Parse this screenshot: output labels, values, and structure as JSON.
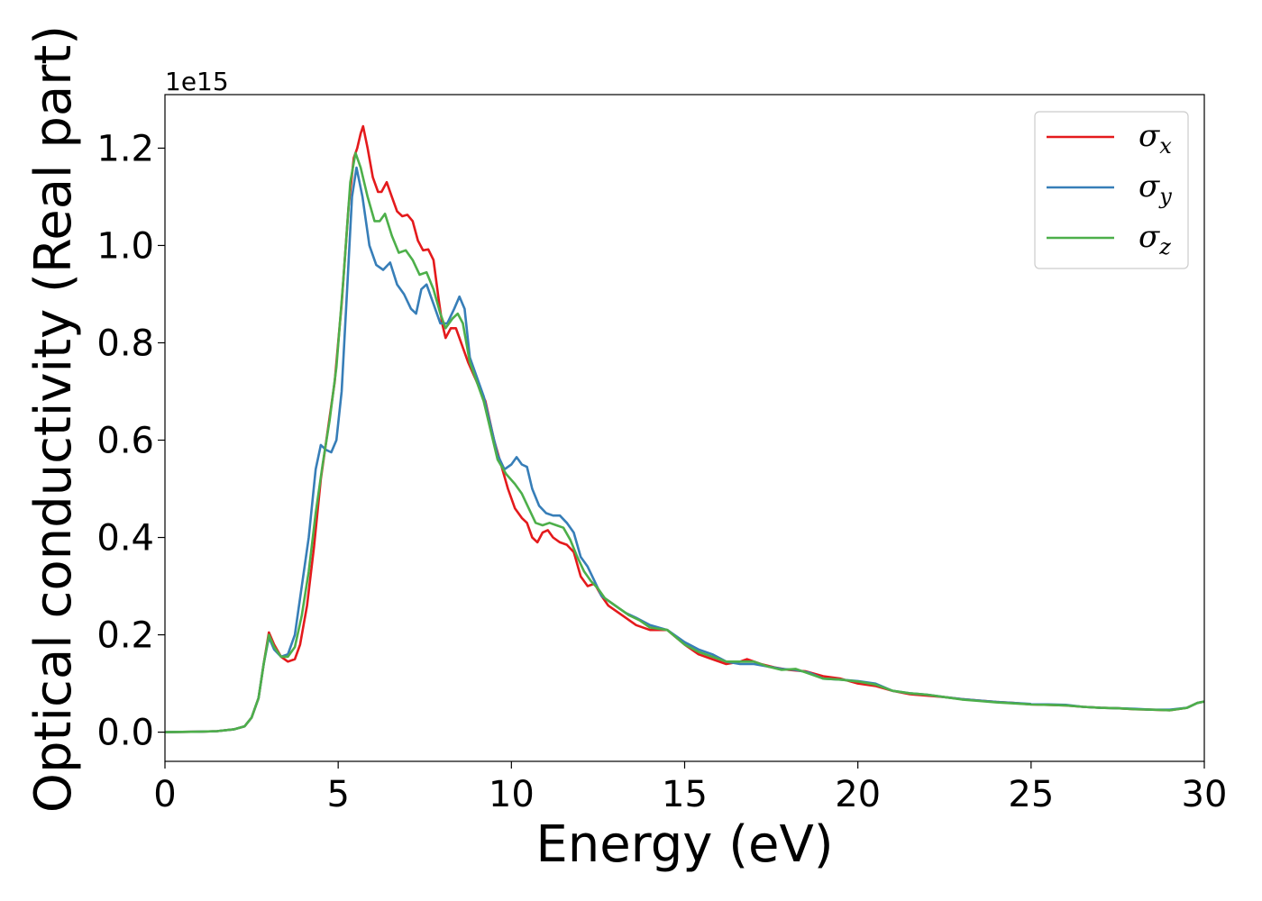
{
  "chart_data": {
    "type": "line",
    "title": "",
    "xlabel": "Energy (eV)",
    "ylabel": "Optical conductivity (Real part)",
    "y_offset_label": "1e15",
    "xlim": [
      0,
      30
    ],
    "ylim": [
      -0.06,
      1.31
    ],
    "x_ticks": [
      0,
      5,
      10,
      15,
      20,
      25,
      30
    ],
    "x_tick_labels": [
      "0",
      "5",
      "10",
      "15",
      "20",
      "25",
      "30"
    ],
    "y_ticks": [
      0.0,
      0.2,
      0.4,
      0.6,
      0.8,
      1.0,
      1.2
    ],
    "y_tick_labels": [
      "0.0",
      "0.2",
      "0.4",
      "0.6",
      "0.8",
      "1.0",
      "1.2"
    ],
    "grid": false,
    "legend_position": "top-right",
    "series": [
      {
        "name": "σx",
        "legend_symbol": "σ",
        "legend_subscript": "x",
        "color": "#e41a1c",
        "points": [
          [
            0,
            0
          ],
          [
            1,
            0.001
          ],
          [
            1.5,
            0.002
          ],
          [
            2,
            0.006
          ],
          [
            2.3,
            0.012
          ],
          [
            2.5,
            0.03
          ],
          [
            2.7,
            0.07
          ],
          [
            2.85,
            0.14
          ],
          [
            3.0,
            0.205
          ],
          [
            3.15,
            0.18
          ],
          [
            3.35,
            0.155
          ],
          [
            3.55,
            0.145
          ],
          [
            3.75,
            0.15
          ],
          [
            3.9,
            0.18
          ],
          [
            4.1,
            0.26
          ],
          [
            4.3,
            0.38
          ],
          [
            4.5,
            0.52
          ],
          [
            4.7,
            0.62
          ],
          [
            4.9,
            0.72
          ],
          [
            5.1,
            0.88
          ],
          [
            5.3,
            1.08
          ],
          [
            5.45,
            1.18
          ],
          [
            5.55,
            1.2
          ],
          [
            5.65,
            1.23
          ],
          [
            5.72,
            1.245
          ],
          [
            5.85,
            1.2
          ],
          [
            6.0,
            1.14
          ],
          [
            6.15,
            1.11
          ],
          [
            6.25,
            1.11
          ],
          [
            6.4,
            1.13
          ],
          [
            6.55,
            1.1
          ],
          [
            6.7,
            1.07
          ],
          [
            6.85,
            1.06
          ],
          [
            7.0,
            1.063
          ],
          [
            7.15,
            1.05
          ],
          [
            7.3,
            1.01
          ],
          [
            7.45,
            0.99
          ],
          [
            7.6,
            0.992
          ],
          [
            7.75,
            0.97
          ],
          [
            7.9,
            0.89
          ],
          [
            8.0,
            0.84
          ],
          [
            8.1,
            0.81
          ],
          [
            8.25,
            0.83
          ],
          [
            8.4,
            0.83
          ],
          [
            8.55,
            0.8
          ],
          [
            8.75,
            0.76
          ],
          [
            9.0,
            0.72
          ],
          [
            9.25,
            0.68
          ],
          [
            9.5,
            0.6
          ],
          [
            9.7,
            0.55
          ],
          [
            9.9,
            0.5
          ],
          [
            10.1,
            0.46
          ],
          [
            10.3,
            0.44
          ],
          [
            10.45,
            0.43
          ],
          [
            10.6,
            0.4
          ],
          [
            10.75,
            0.39
          ],
          [
            10.9,
            0.41
          ],
          [
            11.05,
            0.415
          ],
          [
            11.2,
            0.4
          ],
          [
            11.4,
            0.39
          ],
          [
            11.6,
            0.385
          ],
          [
            11.8,
            0.37
          ],
          [
            12.0,
            0.32
          ],
          [
            12.2,
            0.3
          ],
          [
            12.4,
            0.305
          ],
          [
            12.6,
            0.28
          ],
          [
            12.8,
            0.26
          ],
          [
            13.0,
            0.25
          ],
          [
            13.3,
            0.235
          ],
          [
            13.6,
            0.22
          ],
          [
            14.0,
            0.21
          ],
          [
            14.5,
            0.21
          ],
          [
            15.0,
            0.18
          ],
          [
            15.4,
            0.16
          ],
          [
            15.8,
            0.15
          ],
          [
            16.2,
            0.14
          ],
          [
            16.6,
            0.145
          ],
          [
            16.8,
            0.15
          ],
          [
            17.2,
            0.14
          ],
          [
            17.6,
            0.133
          ],
          [
            18.0,
            0.128
          ],
          [
            18.5,
            0.125
          ],
          [
            19.0,
            0.115
          ],
          [
            19.5,
            0.11
          ],
          [
            20.0,
            0.1
          ],
          [
            20.5,
            0.095
          ],
          [
            21.0,
            0.085
          ],
          [
            21.5,
            0.078
          ],
          [
            22.0,
            0.075
          ],
          [
            22.5,
            0.072
          ],
          [
            23.0,
            0.068
          ],
          [
            23.5,
            0.065
          ],
          [
            24.0,
            0.062
          ],
          [
            24.5,
            0.06
          ],
          [
            25.0,
            0.057
          ],
          [
            25.5,
            0.056
          ],
          [
            26.0,
            0.055
          ],
          [
            26.5,
            0.052
          ],
          [
            27.0,
            0.05
          ],
          [
            27.5,
            0.049
          ],
          [
            28.0,
            0.047
          ],
          [
            28.5,
            0.046
          ],
          [
            29.0,
            0.045
          ],
          [
            29.5,
            0.05
          ],
          [
            29.8,
            0.06
          ],
          [
            30.0,
            0.063
          ]
        ]
      },
      {
        "name": "σy",
        "legend_symbol": "σ",
        "legend_subscript": "y",
        "color": "#377eb8",
        "points": [
          [
            0,
            0
          ],
          [
            1,
            0.001
          ],
          [
            1.5,
            0.002
          ],
          [
            2,
            0.006
          ],
          [
            2.3,
            0.012
          ],
          [
            2.5,
            0.03
          ],
          [
            2.7,
            0.07
          ],
          [
            2.85,
            0.14
          ],
          [
            3.0,
            0.195
          ],
          [
            3.15,
            0.17
          ],
          [
            3.35,
            0.155
          ],
          [
            3.55,
            0.16
          ],
          [
            3.75,
            0.2
          ],
          [
            3.95,
            0.3
          ],
          [
            4.15,
            0.4
          ],
          [
            4.35,
            0.54
          ],
          [
            4.5,
            0.59
          ],
          [
            4.65,
            0.58
          ],
          [
            4.8,
            0.575
          ],
          [
            4.95,
            0.6
          ],
          [
            5.1,
            0.7
          ],
          [
            5.25,
            0.9
          ],
          [
            5.4,
            1.1
          ],
          [
            5.53,
            1.16
          ],
          [
            5.7,
            1.1
          ],
          [
            5.9,
            1.0
          ],
          [
            6.1,
            0.96
          ],
          [
            6.3,
            0.95
          ],
          [
            6.5,
            0.965
          ],
          [
            6.7,
            0.92
          ],
          [
            6.9,
            0.9
          ],
          [
            7.1,
            0.87
          ],
          [
            7.25,
            0.86
          ],
          [
            7.4,
            0.91
          ],
          [
            7.55,
            0.92
          ],
          [
            7.75,
            0.88
          ],
          [
            7.95,
            0.84
          ],
          [
            8.15,
            0.84
          ],
          [
            8.35,
            0.87
          ],
          [
            8.5,
            0.895
          ],
          [
            8.65,
            0.87
          ],
          [
            8.8,
            0.77
          ],
          [
            9.0,
            0.73
          ],
          [
            9.2,
            0.69
          ],
          [
            9.4,
            0.63
          ],
          [
            9.6,
            0.57
          ],
          [
            9.8,
            0.54
          ],
          [
            10.0,
            0.55
          ],
          [
            10.15,
            0.565
          ],
          [
            10.3,
            0.55
          ],
          [
            10.45,
            0.545
          ],
          [
            10.6,
            0.5
          ],
          [
            10.8,
            0.465
          ],
          [
            11.0,
            0.45
          ],
          [
            11.2,
            0.445
          ],
          [
            11.4,
            0.445
          ],
          [
            11.6,
            0.43
          ],
          [
            11.8,
            0.41
          ],
          [
            12.0,
            0.36
          ],
          [
            12.2,
            0.34
          ],
          [
            12.4,
            0.31
          ],
          [
            12.6,
            0.28
          ],
          [
            12.8,
            0.27
          ],
          [
            13.0,
            0.26
          ],
          [
            13.3,
            0.245
          ],
          [
            13.6,
            0.235
          ],
          [
            14.0,
            0.22
          ],
          [
            14.5,
            0.21
          ],
          [
            15.0,
            0.185
          ],
          [
            15.4,
            0.17
          ],
          [
            15.8,
            0.16
          ],
          [
            16.2,
            0.145
          ],
          [
            16.6,
            0.14
          ],
          [
            17.0,
            0.14
          ],
          [
            17.4,
            0.135
          ],
          [
            17.8,
            0.13
          ],
          [
            18.2,
            0.128
          ],
          [
            18.6,
            0.122
          ],
          [
            19.0,
            0.11
          ],
          [
            19.5,
            0.108
          ],
          [
            20.0,
            0.105
          ],
          [
            20.5,
            0.1
          ],
          [
            21.0,
            0.085
          ],
          [
            21.5,
            0.08
          ],
          [
            22.0,
            0.077
          ],
          [
            22.5,
            0.072
          ],
          [
            23.0,
            0.068
          ],
          [
            23.5,
            0.065
          ],
          [
            24.0,
            0.062
          ],
          [
            24.5,
            0.06
          ],
          [
            25.0,
            0.058
          ],
          [
            25.5,
            0.057
          ],
          [
            26.0,
            0.056
          ],
          [
            26.5,
            0.052
          ],
          [
            27.0,
            0.05
          ],
          [
            27.5,
            0.049
          ],
          [
            28.0,
            0.048
          ],
          [
            28.5,
            0.046
          ],
          [
            29.0,
            0.046
          ],
          [
            29.5,
            0.05
          ],
          [
            29.8,
            0.06
          ],
          [
            30.0,
            0.063
          ]
        ]
      },
      {
        "name": "σz",
        "legend_symbol": "σ",
        "legend_subscript": "z",
        "color": "#4daf4a",
        "points": [
          [
            0,
            0
          ],
          [
            1,
            0.001
          ],
          [
            1.5,
            0.002
          ],
          [
            2,
            0.006
          ],
          [
            2.3,
            0.012
          ],
          [
            2.5,
            0.03
          ],
          [
            2.7,
            0.07
          ],
          [
            2.85,
            0.14
          ],
          [
            3.0,
            0.2
          ],
          [
            3.15,
            0.175
          ],
          [
            3.35,
            0.155
          ],
          [
            3.55,
            0.155
          ],
          [
            3.75,
            0.175
          ],
          [
            3.95,
            0.24
          ],
          [
            4.15,
            0.33
          ],
          [
            4.35,
            0.45
          ],
          [
            4.55,
            0.55
          ],
          [
            4.75,
            0.64
          ],
          [
            4.95,
            0.75
          ],
          [
            5.15,
            0.93
          ],
          [
            5.35,
            1.13
          ],
          [
            5.5,
            1.19
          ],
          [
            5.65,
            1.16
          ],
          [
            5.85,
            1.1
          ],
          [
            6.05,
            1.05
          ],
          [
            6.2,
            1.05
          ],
          [
            6.35,
            1.065
          ],
          [
            6.55,
            1.02
          ],
          [
            6.75,
            0.985
          ],
          [
            6.95,
            0.99
          ],
          [
            7.15,
            0.97
          ],
          [
            7.35,
            0.94
          ],
          [
            7.55,
            0.945
          ],
          [
            7.75,
            0.91
          ],
          [
            7.95,
            0.86
          ],
          [
            8.1,
            0.83
          ],
          [
            8.3,
            0.85
          ],
          [
            8.45,
            0.86
          ],
          [
            8.6,
            0.84
          ],
          [
            8.8,
            0.76
          ],
          [
            9.0,
            0.72
          ],
          [
            9.2,
            0.68
          ],
          [
            9.4,
            0.62
          ],
          [
            9.6,
            0.56
          ],
          [
            9.85,
            0.53
          ],
          [
            10.1,
            0.51
          ],
          [
            10.3,
            0.49
          ],
          [
            10.5,
            0.46
          ],
          [
            10.7,
            0.43
          ],
          [
            10.9,
            0.425
          ],
          [
            11.1,
            0.43
          ],
          [
            11.3,
            0.425
          ],
          [
            11.5,
            0.42
          ],
          [
            11.7,
            0.395
          ],
          [
            11.9,
            0.36
          ],
          [
            12.1,
            0.33
          ],
          [
            12.3,
            0.31
          ],
          [
            12.5,
            0.295
          ],
          [
            12.7,
            0.275
          ],
          [
            12.9,
            0.265
          ],
          [
            13.1,
            0.255
          ],
          [
            13.4,
            0.24
          ],
          [
            13.7,
            0.23
          ],
          [
            14.0,
            0.215
          ],
          [
            14.5,
            0.21
          ],
          [
            15.0,
            0.18
          ],
          [
            15.4,
            0.165
          ],
          [
            15.8,
            0.155
          ],
          [
            16.2,
            0.145
          ],
          [
            16.6,
            0.145
          ],
          [
            17.0,
            0.145
          ],
          [
            17.4,
            0.135
          ],
          [
            17.8,
            0.128
          ],
          [
            18.2,
            0.13
          ],
          [
            18.6,
            0.12
          ],
          [
            19.0,
            0.11
          ],
          [
            19.5,
            0.108
          ],
          [
            20.0,
            0.104
          ],
          [
            20.5,
            0.098
          ],
          [
            21.0,
            0.085
          ],
          [
            21.5,
            0.08
          ],
          [
            22.0,
            0.077
          ],
          [
            22.5,
            0.072
          ],
          [
            23.0,
            0.067
          ],
          [
            23.5,
            0.064
          ],
          [
            24.0,
            0.061
          ],
          [
            24.5,
            0.059
          ],
          [
            25.0,
            0.057
          ],
          [
            25.5,
            0.056
          ],
          [
            26.0,
            0.055
          ],
          [
            26.5,
            0.052
          ],
          [
            27.0,
            0.05
          ],
          [
            27.5,
            0.049
          ],
          [
            28.0,
            0.047
          ],
          [
            28.5,
            0.046
          ],
          [
            29.0,
            0.045
          ],
          [
            29.5,
            0.05
          ],
          [
            29.8,
            0.06
          ],
          [
            30.0,
            0.063
          ]
        ]
      }
    ]
  }
}
